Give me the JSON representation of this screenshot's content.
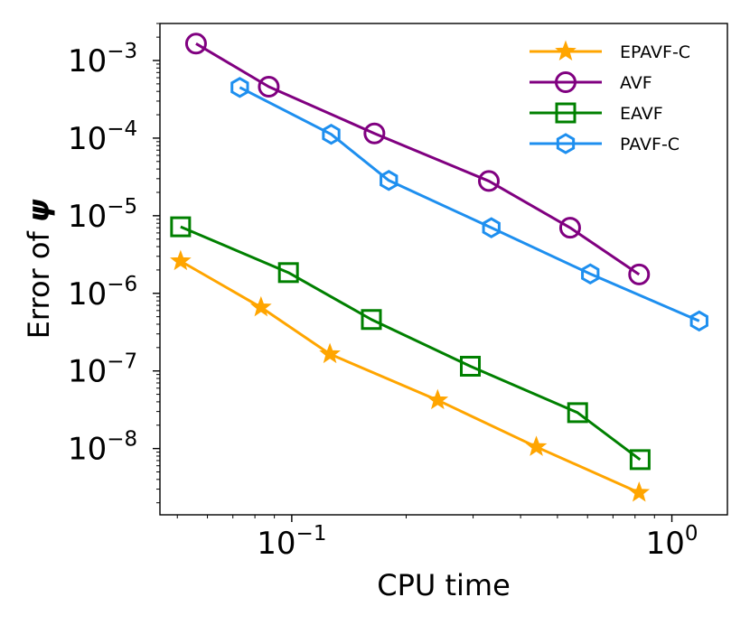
{
  "chart_data": {
    "type": "line",
    "title": "",
    "xlabel": "CPU time",
    "ylabel": {
      "prefix": "Error of ",
      "symbol": "ψ"
    },
    "xscale": "log",
    "yscale": "log",
    "xlim": [
      0.045,
      1.4
    ],
    "ylim": [
      1.4e-09,
      0.003
    ],
    "x_ticks": [
      {
        "value": 0.1,
        "base": "10",
        "exp": "−1"
      },
      {
        "value": 1,
        "base": "10",
        "exp": "0"
      }
    ],
    "y_ticks": [
      {
        "value": 1e-08,
        "base": "10",
        "exp": "−8"
      },
      {
        "value": 1e-07,
        "base": "10",
        "exp": "−7"
      },
      {
        "value": 1e-06,
        "base": "10",
        "exp": "−6"
      },
      {
        "value": 1e-05,
        "base": "10",
        "exp": "−5"
      },
      {
        "value": 0.0001,
        "base": "10",
        "exp": "−4"
      },
      {
        "value": 0.001,
        "base": "10",
        "exp": "−3"
      }
    ],
    "legend_position": "top-right",
    "series": [
      {
        "name": "EPAVF-C",
        "color": "#ffa500",
        "marker": "star",
        "x": [
          0.051,
          0.083,
          0.126,
          0.242,
          0.44,
          0.82
        ],
        "y": [
          2.6e-06,
          6.6e-07,
          1.65e-07,
          4.2e-08,
          1.05e-08,
          2.7e-09
        ]
      },
      {
        "name": "AVF",
        "color": "#800080",
        "marker": "circle",
        "x": [
          0.056,
          0.087,
          0.165,
          0.33,
          0.54,
          0.82
        ],
        "y": [
          0.00165,
          0.00046,
          0.000115,
          2.8e-05,
          7e-06,
          1.75e-06
        ]
      },
      {
        "name": "EAVF",
        "color": "#008000",
        "marker": "square",
        "x": [
          0.051,
          0.098,
          0.162,
          0.295,
          0.565,
          0.825
        ],
        "y": [
          7.2e-06,
          1.85e-06,
          4.6e-07,
          1.15e-07,
          2.9e-08,
          7.2e-09
        ]
      },
      {
        "name": "PAVF-C",
        "color": "#1e8fef",
        "marker": "hexagon",
        "x": [
          0.073,
          0.127,
          0.18,
          0.335,
          0.61,
          1.18
        ],
        "y": [
          0.00045,
          0.000112,
          2.85e-05,
          7e-06,
          1.78e-06,
          4.4e-07
        ]
      }
    ]
  }
}
